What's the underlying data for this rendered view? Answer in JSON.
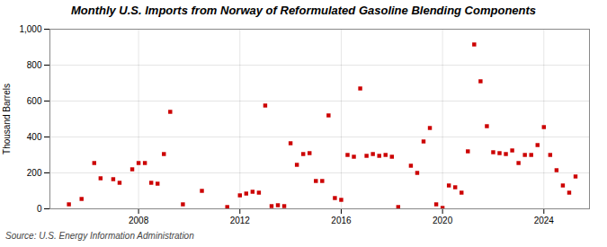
{
  "chart_data": {
    "type": "scatter",
    "title": "Monthly U.S. Imports from Norway of Reformulated Gasoline Blending Components",
    "ylabel": "Thousand Barrels",
    "source": "Source: U.S. Energy Information Administration",
    "color": "#cc0000",
    "marker": "square",
    "grid": true,
    "xlim": [
      2004.5,
      2025.8
    ],
    "xticks": [
      2008,
      2012,
      2016,
      2020,
      2024
    ],
    "ylim": [
      0,
      1000
    ],
    "yticks": [
      0,
      200,
      400,
      600,
      800,
      {
        "value": 1000,
        "label": "1,000"
      }
    ],
    "x": [
      2005.25,
      2005.75,
      2006.25,
      2006.5,
      2007.0,
      2007.25,
      2007.75,
      2008.0,
      2008.25,
      2008.5,
      2008.75,
      2009.0,
      2009.25,
      2009.75,
      2010.5,
      2011.5,
      2012.0,
      2012.25,
      2012.5,
      2012.75,
      2013.0,
      2013.25,
      2013.5,
      2013.75,
      2014.0,
      2014.25,
      2014.5,
      2014.75,
      2015.0,
      2015.25,
      2015.5,
      2015.75,
      2016.0,
      2016.25,
      2016.5,
      2016.75,
      2017.0,
      2017.25,
      2017.5,
      2017.75,
      2018.0,
      2018.25,
      2018.75,
      2019.0,
      2019.25,
      2019.5,
      2019.75,
      2020.0,
      2020.25,
      2020.5,
      2020.75,
      2021.0,
      2021.25,
      2021.5,
      2021.75,
      2022.0,
      2022.25,
      2022.5,
      2022.75,
      2023.0,
      2023.25,
      2023.5,
      2023.75,
      2024.0,
      2024.25,
      2024.5,
      2024.75,
      2025.0,
      2025.25
    ],
    "values": [
      25,
      55,
      255,
      170,
      165,
      145,
      220,
      255,
      255,
      145,
      140,
      305,
      540,
      25,
      100,
      10,
      75,
      85,
      95,
      90,
      575,
      15,
      20,
      15,
      365,
      245,
      305,
      310,
      155,
      155,
      520,
      60,
      50,
      300,
      290,
      670,
      295,
      305,
      295,
      300,
      290,
      10,
      240,
      200,
      375,
      450,
      25,
      5,
      130,
      120,
      90,
      320,
      915,
      710,
      460,
      315,
      310,
      305,
      325,
      255,
      300,
      300,
      355,
      455,
      300,
      215,
      130,
      90,
      180
    ]
  }
}
